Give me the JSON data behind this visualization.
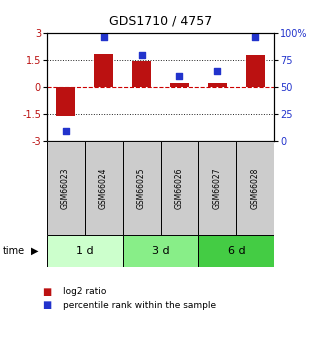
{
  "title": "GDS1710 / 4757",
  "samples": [
    "GSM66023",
    "GSM66024",
    "GSM66025",
    "GSM66026",
    "GSM66027",
    "GSM66028"
  ],
  "log2_ratio": [
    -1.6,
    1.85,
    1.45,
    0.2,
    0.2,
    1.8
  ],
  "percentile_rank": [
    10,
    96,
    80,
    60,
    65,
    96
  ],
  "groups": [
    {
      "label": "1 d",
      "samples": [
        0,
        1
      ],
      "color": "#ccffcc"
    },
    {
      "label": "3 d",
      "samples": [
        2,
        3
      ],
      "color": "#88ee88"
    },
    {
      "label": "6 d",
      "samples": [
        4,
        5
      ],
      "color": "#44cc44"
    }
  ],
  "ylim_left": [
    -3,
    3
  ],
  "ylim_right": [
    0,
    100
  ],
  "yticks_left": [
    -3,
    -1.5,
    0,
    1.5,
    3
  ],
  "yticks_right": [
    0,
    25,
    50,
    75,
    100
  ],
  "bar_color": "#bb1111",
  "dot_color": "#2233cc",
  "hline_zero_color": "#cc0000",
  "hline_15_color": "#222222",
  "background_color": "#ffffff",
  "plot_bg_color": "#ffffff",
  "sample_box_color": "#cccccc",
  "legend_bar_label": "log2 ratio",
  "legend_dot_label": "percentile rank within the sample",
  "time_label": "time",
  "title_fontsize": 9,
  "tick_fontsize": 7,
  "sample_fontsize": 5.5,
  "group_fontsize": 8,
  "legend_fontsize": 6.5
}
